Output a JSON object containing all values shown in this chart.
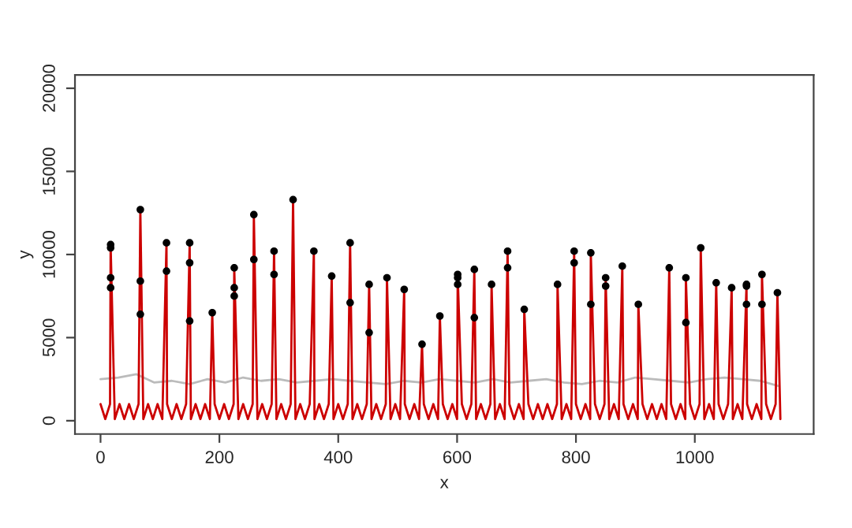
{
  "chart_data": {
    "type": "line",
    "xlabel": "x",
    "ylabel": "y",
    "xlim": [
      -43,
      1200
    ],
    "ylim": [
      -800,
      20800
    ],
    "xticks": [
      0,
      200,
      400,
      600,
      800,
      1000
    ],
    "yticks": [
      0,
      5000,
      10000,
      15000,
      20000
    ],
    "grid": false,
    "series": [
      {
        "color": "#bbbbbb",
        "marker": "none",
        "x": [
          0,
          30,
          60,
          90,
          120,
          150,
          180,
          210,
          240,
          270,
          300,
          330,
          360,
          390,
          420,
          450,
          480,
          510,
          540,
          570,
          600,
          630,
          660,
          690,
          720,
          750,
          780,
          810,
          840,
          870,
          900,
          930,
          960,
          990,
          1020,
          1050,
          1080,
          1110,
          1140
        ],
        "values": [
          2500,
          2600,
          2800,
          2300,
          2400,
          2200,
          2500,
          2300,
          2600,
          2400,
          2500,
          2300,
          2400,
          2500,
          2400,
          2300,
          2200,
          2400,
          2300,
          2500,
          2400,
          2300,
          2500,
          2300,
          2400,
          2500,
          2300,
          2200,
          2400,
          2300,
          2600,
          2500,
          2400,
          2300,
          2500,
          2600,
          2500,
          2400,
          2100
        ]
      },
      {
        "color": "#cc0000",
        "marker": "none",
        "x": [
          0,
          8,
          16,
          17,
          24,
          32,
          40,
          48,
          56,
          64,
          67,
          72,
          80,
          88,
          96,
          104,
          111,
          112,
          120,
          128,
          136,
          144,
          150,
          152,
          160,
          168,
          176,
          184,
          188,
          192,
          200,
          208,
          216,
          224,
          225,
          232,
          240,
          248,
          256,
          258,
          264,
          272,
          280,
          288,
          292,
          296,
          304,
          312,
          320,
          324,
          328,
          336,
          344,
          352,
          359,
          360,
          368,
          376,
          384,
          389,
          392,
          400,
          408,
          416,
          420,
          424,
          432,
          440,
          448,
          452,
          456,
          464,
          472,
          480,
          482,
          488,
          496,
          504,
          511,
          512,
          520,
          528,
          536,
          541,
          544,
          552,
          560,
          568,
          571,
          576,
          584,
          592,
          600,
          601,
          608,
          616,
          624,
          629,
          632,
          640,
          648,
          656,
          658,
          664,
          672,
          680,
          685,
          688,
          696,
          704,
          712,
          713,
          720,
          728,
          736,
          744,
          752,
          760,
          768,
          769,
          776,
          784,
          792,
          797,
          800,
          808,
          816,
          824,
          825,
          832,
          840,
          848,
          850,
          856,
          864,
          872,
          878,
          880,
          888,
          896,
          904,
          905,
          912,
          920,
          928,
          936,
          944,
          952,
          957,
          960,
          968,
          976,
          984,
          985,
          992,
          1000,
          1008,
          1010,
          1016,
          1024,
          1032,
          1036,
          1040,
          1048,
          1056,
          1062,
          1064,
          1072,
          1080,
          1087,
          1088,
          1096,
          1104,
          1112,
          1113,
          1120,
          1128,
          1136,
          1139,
          1144
        ],
        "values": [
          1000,
          100,
          1000,
          10600,
          100,
          1000,
          100,
          1000,
          100,
          1000,
          12700,
          100,
          1000,
          100,
          1000,
          100,
          10700,
          1000,
          100,
          1000,
          100,
          1000,
          10700,
          100,
          1000,
          100,
          1000,
          100,
          6500,
          1000,
          100,
          1000,
          100,
          1000,
          9200,
          100,
          1000,
          100,
          1000,
          12400,
          100,
          1000,
          100,
          1000,
          10200,
          100,
          1000,
          100,
          1000,
          13300,
          100,
          1000,
          100,
          1000,
          10200,
          100,
          1000,
          100,
          1000,
          8700,
          100,
          1000,
          100,
          1000,
          10700,
          100,
          1000,
          100,
          1000,
          8200,
          100,
          1000,
          100,
          1000,
          8600,
          100,
          1000,
          100,
          7900,
          1000,
          100,
          1000,
          100,
          4600,
          1000,
          100,
          1000,
          100,
          6300,
          1000,
          100,
          1000,
          100,
          8800,
          1000,
          100,
          1000,
          9100,
          100,
          1000,
          100,
          1000,
          8200,
          100,
          1000,
          100,
          10200,
          1000,
          100,
          1000,
          100,
          6700,
          1000,
          100,
          1000,
          100,
          1000,
          100,
          1000,
          8200,
          100,
          1000,
          100,
          10200,
          1000,
          100,
          1000,
          100,
          10100,
          1000,
          100,
          1000,
          8600,
          100,
          1000,
          100,
          9300,
          1000,
          100,
          1000,
          100,
          7000,
          1000,
          100,
          1000,
          100,
          1000,
          100,
          9200,
          1000,
          100,
          1000,
          100,
          8600,
          1000,
          100,
          1000,
          10400,
          100,
          1000,
          100,
          8300,
          1000,
          100,
          1000,
          8000,
          100,
          1000,
          100,
          8200,
          1000,
          100,
          1000,
          100,
          8800,
          1000,
          100,
          1000,
          7700,
          100
        ]
      },
      {
        "type": "scatter",
        "color": "#000000",
        "marker": "circle",
        "x": [
          17,
          17,
          17,
          17,
          67,
          67,
          67,
          111,
          111,
          150,
          150,
          150,
          188,
          225,
          225,
          225,
          258,
          258,
          292,
          292,
          324,
          359,
          389,
          420,
          420,
          452,
          452,
          482,
          511,
          541,
          571,
          601,
          601,
          601,
          629,
          629,
          658,
          685,
          685,
          713,
          769,
          797,
          797,
          825,
          825,
          850,
          850,
          878,
          905,
          957,
          985,
          985,
          1010,
          1036,
          1062,
          1087,
          1087,
          1087,
          1113,
          1113,
          1139
        ],
        "values": [
          10600,
          10400,
          8600,
          8000,
          12700,
          8400,
          6400,
          10700,
          9000,
          10700,
          9500,
          6000,
          6500,
          9200,
          8000,
          7500,
          12400,
          9700,
          10200,
          8800,
          13300,
          10200,
          8700,
          10700,
          7100,
          8200,
          5300,
          8600,
          7900,
          4600,
          6300,
          8800,
          8600,
          8200,
          9100,
          6200,
          8200,
          10200,
          9200,
          6700,
          8200,
          10200,
          9500,
          10100,
          7000,
          8600,
          8100,
          9300,
          7000,
          9200,
          8600,
          5900,
          10400,
          8300,
          8000,
          8200,
          8100,
          7000,
          8800,
          7000,
          7700
        ]
      }
    ]
  }
}
